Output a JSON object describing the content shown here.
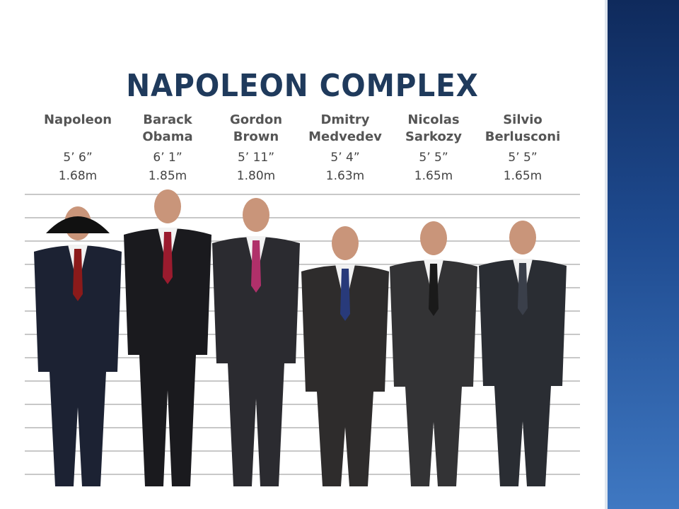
{
  "title": "NAPOLEON COMPLEX",
  "people": [
    {
      "name": [
        "Napoleon"
      ],
      "imperial": "5’ 6”",
      "metric": "1.68m"
    },
    {
      "name": [
        "Barack",
        "Obama"
      ],
      "imperial": "6’ 1”",
      "metric": "1.85m"
    },
    {
      "name": [
        "Gordon",
        "Brown"
      ],
      "imperial": "5’ 11”",
      "metric": "1.80m"
    },
    {
      "name": [
        "Dmitry",
        "Medvedev"
      ],
      "imperial": "5’ 4”",
      "metric": "1.63m"
    },
    {
      "name": [
        "Nicolas",
        "Sarkozy"
      ],
      "imperial": "5’ 5”",
      "metric": "1.65m"
    },
    {
      "name": [
        "Silvio",
        "Berlusconi"
      ],
      "imperial": "5’ 5”",
      "metric": "1.65m"
    }
  ]
}
